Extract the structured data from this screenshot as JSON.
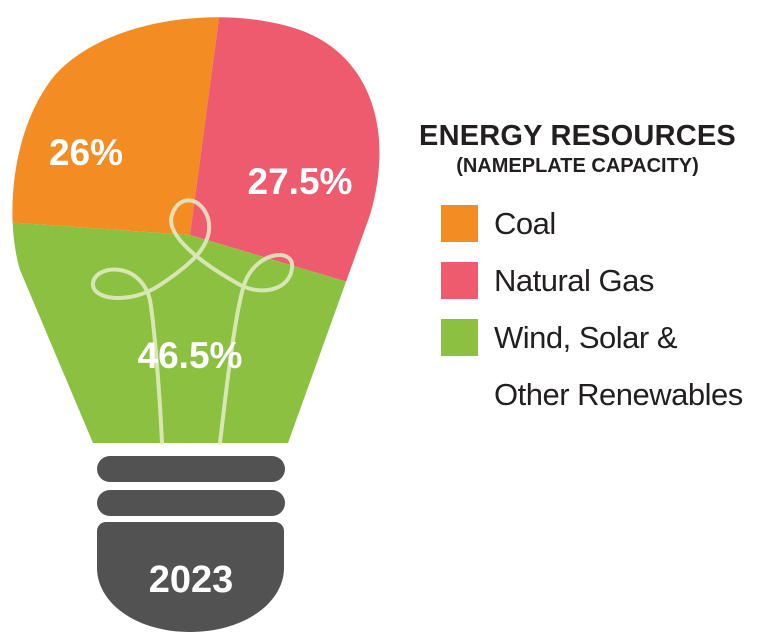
{
  "chart_data": {
    "type": "pie",
    "title": "ENERGY RESOURCES",
    "subtitle": "(NAMEPLATE CAPACITY)",
    "year": "2023",
    "categories": [
      "Coal",
      "Natural Gas",
      "Wind, Solar & Other Renewables"
    ],
    "values": [
      26,
      27.5,
      46.5
    ],
    "value_labels": [
      "26%",
      "27.5%",
      "46.5%"
    ],
    "colors": [
      "#f38c22",
      "#ef5b6e",
      "#8cc040"
    ],
    "legend_position": "right"
  },
  "colors": {
    "base": "#525252",
    "filament": "#e4edc9",
    "text_dark": "#231f20"
  }
}
